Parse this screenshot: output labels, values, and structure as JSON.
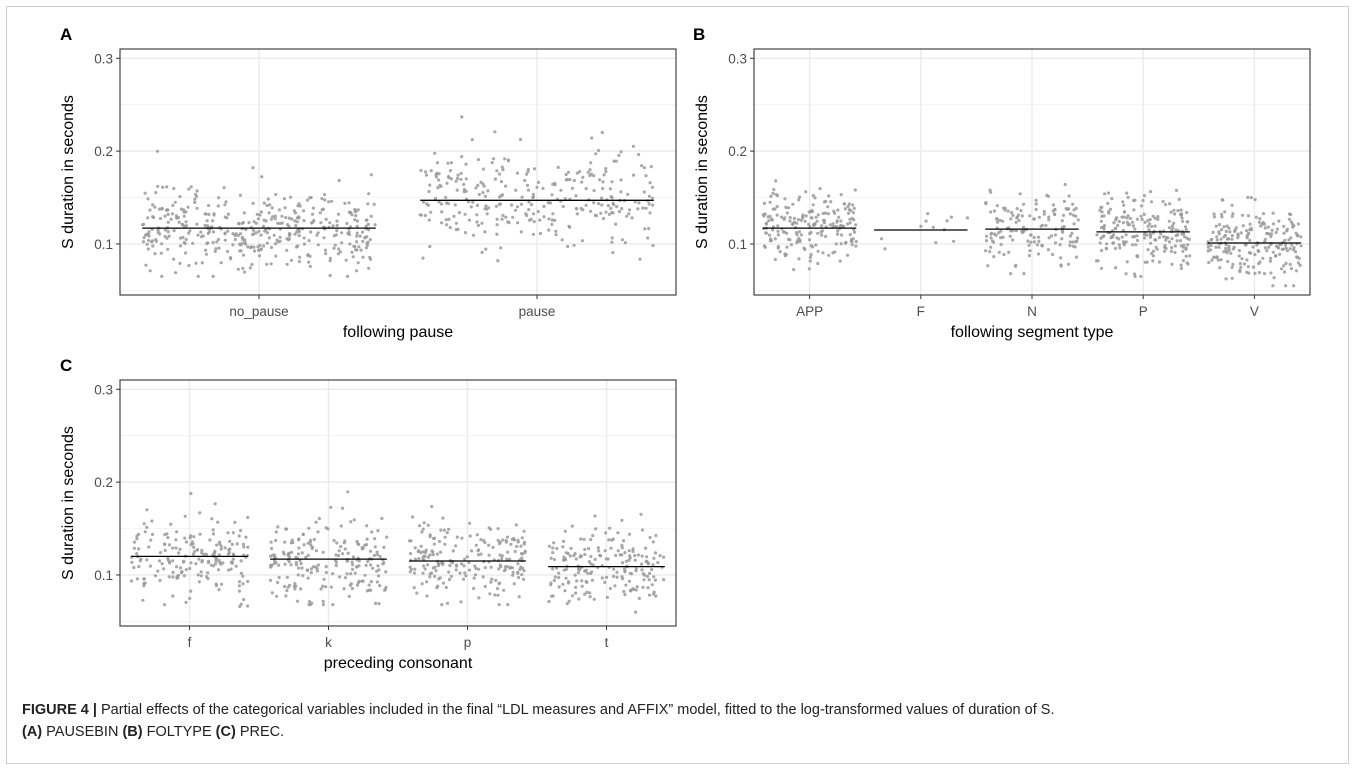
{
  "chart_data": [
    {
      "type": "scatter",
      "panel_label": "A",
      "xlabel": "following pause",
      "ylabel": "S duration in seconds",
      "categories": [
        "no_pause",
        "pause"
      ],
      "yticks": [
        "0.1",
        "0.2",
        "0.3"
      ],
      "ylim": [
        0.045,
        0.31
      ],
      "grid": true,
      "fitted_values": [
        0.117,
        0.147
      ],
      "point_summary": [
        {
          "category": "no_pause",
          "n": 420,
          "min": 0.065,
          "max": 0.21,
          "center": 0.117
        },
        {
          "category": "pause",
          "n": 300,
          "min": 0.082,
          "max": 0.265,
          "center": 0.147
        }
      ],
      "point_color": "#9a9a9a",
      "line_color": "#000000"
    },
    {
      "type": "scatter",
      "panel_label": "B",
      "xlabel": "following segment type",
      "ylabel": "S duration in seconds",
      "categories": [
        "APP",
        "F",
        "N",
        "P",
        "V"
      ],
      "yticks": [
        "0.1",
        "0.2",
        "0.3"
      ],
      "ylim": [
        0.045,
        0.31
      ],
      "grid": true,
      "fitted_values": [
        0.117,
        0.115,
        0.116,
        0.113,
        0.101
      ],
      "point_summary": [
        {
          "category": "APP",
          "n": 200,
          "min": 0.07,
          "max": 0.21,
          "center": 0.117
        },
        {
          "category": "F",
          "n": 12,
          "min": 0.082,
          "max": 0.155,
          "center": 0.115
        },
        {
          "category": "N",
          "n": 150,
          "min": 0.068,
          "max": 0.205,
          "center": 0.116
        },
        {
          "category": "P",
          "n": 210,
          "min": 0.065,
          "max": 0.2,
          "center": 0.113
        },
        {
          "category": "V",
          "n": 210,
          "min": 0.055,
          "max": 0.18,
          "center": 0.101
        }
      ],
      "point_color": "#9a9a9a",
      "line_color": "#000000"
    },
    {
      "type": "scatter",
      "panel_label": "C",
      "xlabel": "preceding consonant",
      "ylabel": "S duration in seconds",
      "categories": [
        "f",
        "k",
        "p",
        "t"
      ],
      "yticks": [
        "0.1",
        "0.2",
        "0.3"
      ],
      "ylim": [
        0.045,
        0.31
      ],
      "grid": true,
      "fitted_values": [
        0.12,
        0.117,
        0.115,
        0.109
      ],
      "point_summary": [
        {
          "category": "f",
          "n": 190,
          "min": 0.066,
          "max": 0.205,
          "center": 0.12
        },
        {
          "category": "k",
          "n": 210,
          "min": 0.068,
          "max": 0.21,
          "center": 0.117
        },
        {
          "category": "p",
          "n": 210,
          "min": 0.068,
          "max": 0.205,
          "center": 0.115
        },
        {
          "category": "t",
          "n": 200,
          "min": 0.06,
          "max": 0.192,
          "center": 0.109
        }
      ],
      "point_color": "#9a9a9a",
      "line_color": "#000000"
    }
  ],
  "caption": {
    "figure_label": "FIGURE 4 |",
    "text": "Partial effects of the categorical variables included in the final “LDL measures and AFFIX” model, fitted to the log-transformed values of duration of S.",
    "parts": [
      {
        "label": "(A)",
        "var": "PAUSEBIN"
      },
      {
        "label": "(B)",
        "var": "FOLTYPE"
      },
      {
        "label": "(C)",
        "var": "PREC."
      }
    ]
  }
}
